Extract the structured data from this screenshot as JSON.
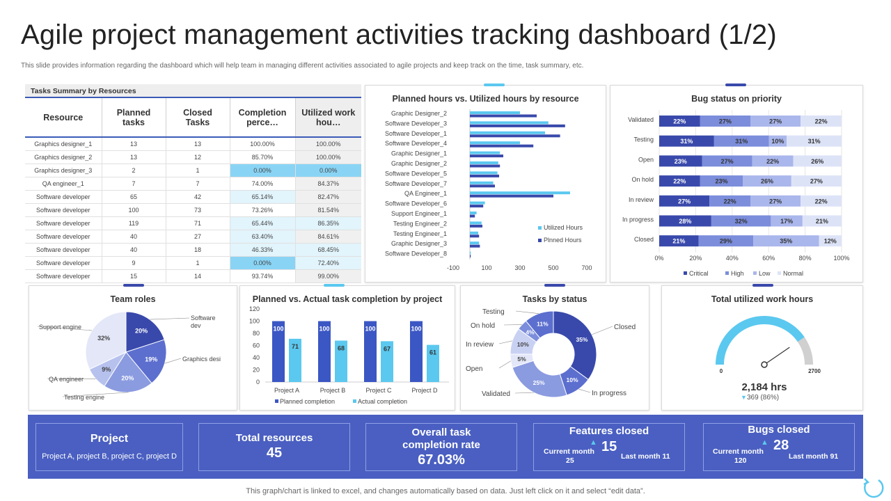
{
  "header": {
    "title": "Agile project management activities tracking dashboard (1/2)",
    "subtitle": "This slide provides information regarding the dashboard which will help team in managing different activities associated to agile projects and keep track on the time, task summary, etc."
  },
  "footer": {
    "note": "This graph/chart is linked to excel, and changes automatically based on data. Just left click on it and select “edit data”."
  },
  "colors": {
    "primary": "#4a5fc1",
    "accent_light": "#5bc8ef",
    "dark_blue": "#3949ab",
    "mid_blue": "#7b8ddb",
    "light_blue": "#aab7ec",
    "pale_blue": "#dde3f7",
    "highlight": "#89d4f5"
  },
  "tasks_table": {
    "heading": "Tasks Summary by Resources",
    "columns": [
      "Resource",
      "Planned tasks",
      "Closed Tasks",
      "Completion perce…",
      "Utilized work hou…"
    ],
    "rows": [
      [
        "Graphics designer_1",
        "13",
        "13",
        "100.00%",
        "100.00%"
      ],
      [
        "Graphics designer_2",
        "13",
        "12",
        "85.70%",
        "100.00%"
      ],
      [
        "Graphics designer_3",
        "2",
        "1",
        "0.00%",
        "0.00%"
      ],
      [
        "QA engineer_1",
        "7",
        "7",
        "74.00%",
        "84.37%"
      ],
      [
        "Software developer",
        "65",
        "42",
        "65.14%",
        "82.47%"
      ],
      [
        "Software developer",
        "100",
        "73",
        "73.26%",
        "81.54%"
      ],
      [
        "Software developer",
        "119",
        "71",
        "65.44%",
        "86.35%"
      ],
      [
        "Software developer",
        "40",
        "27",
        "63.40%",
        "84.61%"
      ],
      [
        "Software developer",
        "40",
        "18",
        "46.33%",
        "68.45%"
      ],
      [
        "Software developer",
        "9",
        "1",
        "0.00%",
        "72.40%"
      ],
      [
        "Software developer",
        "15",
        "14",
        "93.74%",
        "99.00%"
      ]
    ]
  },
  "chart_data": [
    {
      "type": "bar",
      "orientation": "horizontal",
      "title": "Planned hours vs. Utilized hours by resource",
      "categories": [
        "Graphic Designer_2",
        "Software Developer_3",
        "Software Developer_1",
        "Software Developer_4",
        "Graphic Designer_1",
        "Graphic Designer_2",
        "Software Developer_5",
        "Software Developer_7",
        "QA Engineer_1",
        "Software Developer_6",
        "Support Engineer_1",
        "Testing Engineer_2",
        "Testing Engineer_1",
        "Graphic Designer_3",
        "Software Developer_8"
      ],
      "series": [
        {
          "name": "Utilized Hours",
          "color": "#5bc8ef",
          "values": [
            300,
            470,
            450,
            300,
            180,
            170,
            165,
            140,
            600,
            90,
            40,
            70,
            50,
            55,
            5
          ]
        },
        {
          "name": "Plnned Hours",
          "color": "#3949ab",
          "values": [
            400,
            570,
            540,
            380,
            200,
            180,
            175,
            150,
            500,
            80,
            30,
            75,
            55,
            60,
            5
          ]
        }
      ],
      "xlim": [
        -100,
        700
      ],
      "xticks": [
        "-100",
        "100",
        "300",
        "500",
        "700"
      ]
    },
    {
      "type": "bar",
      "orientation": "horizontal",
      "stacked": true,
      "percent": true,
      "title": "Bug status on priority",
      "categories": [
        "Validated",
        "Testing",
        "Open",
        "On hold",
        "In review",
        "In progress",
        "Closed"
      ],
      "series": [
        {
          "name": "Critical",
          "color": "#3949ab",
          "values": [
            22,
            31,
            23,
            22,
            27,
            28,
            21
          ]
        },
        {
          "name": "High",
          "color": "#7b8ddb",
          "values": [
            27,
            31,
            27,
            23,
            22,
            32,
            29
          ]
        },
        {
          "name": "Low",
          "color": "#aab7ec",
          "values": [
            27,
            10,
            22,
            26,
            27,
            17,
            35
          ]
        },
        {
          "name": "Normal",
          "color": "#dde3f7",
          "values": [
            22,
            31,
            26,
            27,
            22,
            21,
            12
          ]
        }
      ],
      "xticks": [
        "0%",
        "20%",
        "40%",
        "60%",
        "80%",
        "100%"
      ]
    },
    {
      "type": "pie",
      "title": "Team roles",
      "slices": [
        {
          "label": "Software dev",
          "value": 20,
          "text": "20%",
          "color": "#3949ab"
        },
        {
          "label": "Graphics desi",
          "value": 19,
          "text": "19%",
          "color": "#5c6fcf"
        },
        {
          "label": "Testing engine",
          "value": 20,
          "text": "20%",
          "color": "#8b9be0"
        },
        {
          "label": "QA engineer",
          "value": 9,
          "text": "9%",
          "color": "#b6c1ee"
        },
        {
          "label": "Support engine",
          "value": 32,
          "text": "32%",
          "color": "#e3e7f8"
        }
      ]
    },
    {
      "type": "bar",
      "title": "Planned vs. Actual task completion by project",
      "categories": [
        "Project A",
        "Project B",
        "Project C",
        "Project D"
      ],
      "series": [
        {
          "name": "Planned completion",
          "color": "#3b57c4",
          "values": [
            100,
            100,
            100,
            100
          ]
        },
        {
          "name": "Actual completion",
          "color": "#5bc8ef",
          "values": [
            71,
            68,
            67,
            61
          ]
        }
      ],
      "ylim": [
        0,
        120
      ],
      "yticks": [
        "0",
        "20",
        "40",
        "60",
        "80",
        "100",
        "120"
      ]
    },
    {
      "type": "pie",
      "donut": true,
      "title": "Tasks by status",
      "slices": [
        {
          "label": "Closed",
          "value": 35,
          "text": "35%",
          "color": "#3949ab"
        },
        {
          "label": "In progress",
          "value": 10,
          "text": "10%",
          "color": "#5c6fcf"
        },
        {
          "label": "Validated",
          "value": 25,
          "text": "25%",
          "color": "#8b9be0"
        },
        {
          "label": "Open",
          "value": 5,
          "text": "5%",
          "color": "#e3e7f8"
        },
        {
          "label": "In review",
          "value": 10,
          "text": "10%",
          "color": "#c9d1f3"
        },
        {
          "label": "On hold",
          "value": 4,
          "text": "4%",
          "color": "#7b8ddb"
        },
        {
          "label": "Testing",
          "value": 11,
          "text": "11%",
          "color": "#5c6fcf"
        }
      ]
    }
  ],
  "gauge": {
    "title": "Total utilized work hours",
    "min_label": "0",
    "max_label": "2700",
    "value": 2184,
    "max": 2700,
    "value_label": "2,184 hrs",
    "delta_label": "369 (86%)"
  },
  "kpis": {
    "project": {
      "title": "Project",
      "value": "Project A, project B, project C, project D"
    },
    "resources": {
      "title": "Total resources",
      "value": "45"
    },
    "completion": {
      "title": "Overall task completion rate",
      "value": "67.03%"
    },
    "features": {
      "title": "Features closed",
      "value": "15",
      "current_label": "Current month",
      "current_value": "25",
      "last_label": "Last month 11"
    },
    "bugs": {
      "title": "Bugs closed",
      "value": "28",
      "current_label": "Current month",
      "current_value": "120",
      "last_label": "Last month 91"
    }
  }
}
